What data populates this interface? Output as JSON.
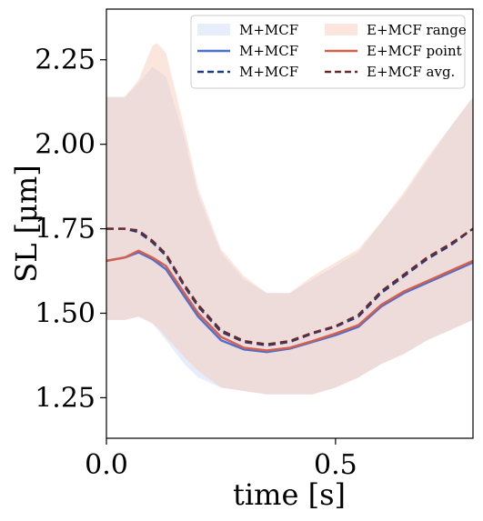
{
  "chart_data": {
    "type": "line",
    "xlabel": "time [s]",
    "ylabel": "SL [μm]",
    "xlim": [
      0.0,
      0.8
    ],
    "ylim": [
      1.13,
      2.4
    ],
    "xticks": [
      0.0,
      0.5
    ],
    "xtick_labels": [
      "0.0",
      "0.5"
    ],
    "yticks": [
      1.25,
      1.5,
      1.75,
      2.0,
      2.25
    ],
    "ytick_labels": [
      "1.25",
      "1.50",
      "1.75",
      "2.00",
      "2.25"
    ],
    "grid": false,
    "legend_position": "top-right",
    "legend_columns": 2,
    "series": [
      {
        "name": "M+MCF",
        "kind": "band",
        "color": "#c9d8f3",
        "opacity": 0.45,
        "x": [
          0.0,
          0.04,
          0.07,
          0.1,
          0.13,
          0.17,
          0.2,
          0.25,
          0.3,
          0.35,
          0.4,
          0.45,
          0.5,
          0.55,
          0.6,
          0.65,
          0.7,
          0.75,
          0.8
        ],
        "upper": [
          2.14,
          2.14,
          2.18,
          2.23,
          2.2,
          2.02,
          1.85,
          1.68,
          1.6,
          1.56,
          1.56,
          1.6,
          1.64,
          1.68,
          1.77,
          1.85,
          1.95,
          2.05,
          2.14
        ],
        "lower": [
          1.48,
          1.48,
          1.49,
          1.47,
          1.42,
          1.35,
          1.31,
          1.28,
          1.27,
          1.26,
          1.26,
          1.26,
          1.28,
          1.31,
          1.35,
          1.38,
          1.42,
          1.45,
          1.48
        ]
      },
      {
        "name": "M+MCF",
        "kind": "line",
        "color": "#4d6fd0",
        "dash": "solid",
        "x": [
          0.0,
          0.04,
          0.07,
          0.1,
          0.13,
          0.17,
          0.2,
          0.25,
          0.3,
          0.35,
          0.4,
          0.45,
          0.5,
          0.55,
          0.6,
          0.65,
          0.7,
          0.75,
          0.8
        ],
        "y": [
          1.655,
          1.665,
          1.68,
          1.66,
          1.63,
          1.55,
          1.49,
          1.42,
          1.393,
          1.385,
          1.395,
          1.415,
          1.435,
          1.46,
          1.52,
          1.56,
          1.59,
          1.62,
          1.65
        ]
      },
      {
        "name": "M+MCF",
        "kind": "line",
        "color": "#1f3c88",
        "dash": "dashed",
        "x": [
          0.0,
          0.04,
          0.07,
          0.1,
          0.13,
          0.17,
          0.2,
          0.25,
          0.3,
          0.35,
          0.4,
          0.45,
          0.5,
          0.55,
          0.6,
          0.65,
          0.7,
          0.75,
          0.8
        ],
        "y": [
          1.75,
          1.75,
          1.74,
          1.71,
          1.67,
          1.58,
          1.52,
          1.445,
          1.415,
          1.405,
          1.415,
          1.44,
          1.46,
          1.49,
          1.56,
          1.61,
          1.66,
          1.7,
          1.75
        ]
      },
      {
        "name": "E+MCF range",
        "kind": "band",
        "color": "#f7c7b5",
        "opacity": 0.45,
        "x": [
          0.0,
          0.04,
          0.07,
          0.1,
          0.11,
          0.13,
          0.17,
          0.2,
          0.25,
          0.3,
          0.35,
          0.4,
          0.45,
          0.5,
          0.55,
          0.6,
          0.65,
          0.7,
          0.75,
          0.8
        ],
        "upper": [
          2.14,
          2.14,
          2.19,
          2.29,
          2.3,
          2.27,
          2.05,
          1.87,
          1.69,
          1.61,
          1.56,
          1.56,
          1.61,
          1.65,
          1.69,
          1.77,
          1.86,
          1.96,
          2.05,
          2.14
        ],
        "lower": [
          1.48,
          1.48,
          1.49,
          1.47,
          1.46,
          1.43,
          1.37,
          1.33,
          1.28,
          1.27,
          1.26,
          1.26,
          1.26,
          1.28,
          1.31,
          1.35,
          1.38,
          1.42,
          1.45,
          1.48
        ]
      },
      {
        "name": "E+MCF point",
        "kind": "line",
        "color": "#d45f4a",
        "dash": "solid",
        "x": [
          0.0,
          0.04,
          0.07,
          0.1,
          0.13,
          0.17,
          0.2,
          0.25,
          0.3,
          0.35,
          0.4,
          0.45,
          0.5,
          0.55,
          0.6,
          0.65,
          0.7,
          0.75,
          0.8
        ],
        "y": [
          1.655,
          1.665,
          1.685,
          1.665,
          1.64,
          1.56,
          1.5,
          1.43,
          1.398,
          1.39,
          1.398,
          1.418,
          1.44,
          1.465,
          1.525,
          1.565,
          1.595,
          1.625,
          1.655
        ]
      },
      {
        "name": "E+MCF avg.",
        "kind": "line",
        "color": "#6b2a2a",
        "dash": "dashed",
        "x": [
          0.0,
          0.04,
          0.07,
          0.1,
          0.13,
          0.17,
          0.2,
          0.25,
          0.3,
          0.35,
          0.4,
          0.45,
          0.5,
          0.55,
          0.6,
          0.65,
          0.7,
          0.75,
          0.8
        ],
        "y": [
          1.75,
          1.75,
          1.745,
          1.715,
          1.675,
          1.585,
          1.525,
          1.45,
          1.418,
          1.408,
          1.418,
          1.442,
          1.462,
          1.495,
          1.565,
          1.615,
          1.665,
          1.705,
          1.75
        ]
      }
    ]
  }
}
